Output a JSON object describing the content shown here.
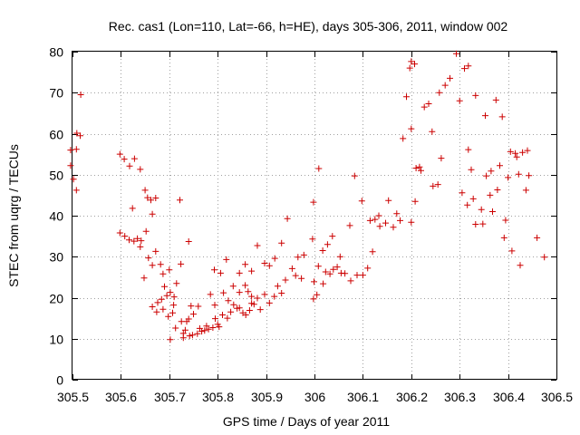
{
  "chart_data": {
    "type": "scatter",
    "title": "Rec. cas1 (Lon=110, Lat=-66, h=HE), days 305-306, 2011, window 002",
    "xlabel": "GPS time / Days of year 2011",
    "ylabel": "STEC from uqrg / TECUs",
    "xlim": [
      305.5,
      306.5
    ],
    "ylim": [
      0,
      80
    ],
    "xticks": [
      "305.5",
      "305.6",
      "305.7",
      "305.8",
      "305.9",
      "306",
      "306.1",
      "306.2",
      "306.3",
      "306.4",
      "306.5"
    ],
    "yticks": [
      "0",
      "10",
      "20",
      "30",
      "40",
      "50",
      "60",
      "70",
      "80"
    ],
    "grid": true,
    "marker": "+",
    "color": "#cc0000",
    "series": [
      {
        "name": "STEC",
        "points": [
          [
            305.496,
            56.0
          ],
          [
            305.496,
            52.2
          ],
          [
            305.502,
            48.9
          ],
          [
            305.508,
            56.2
          ],
          [
            305.509,
            60.1
          ],
          [
            305.508,
            46.2
          ],
          [
            305.517,
            69.5
          ],
          [
            305.516,
            59.5
          ],
          [
            305.598,
            55.0
          ],
          [
            305.607,
            53.8
          ],
          [
            305.618,
            52.1
          ],
          [
            305.628,
            53.9
          ],
          [
            305.64,
            51.3
          ],
          [
            305.65,
            46.2
          ],
          [
            305.655,
            44.4
          ],
          [
            305.662,
            43.8
          ],
          [
            305.672,
            44.3
          ],
          [
            305.624,
            41.8
          ],
          [
            305.665,
            40.4
          ],
          [
            305.598,
            35.8
          ],
          [
            305.608,
            35.0
          ],
          [
            305.617,
            34.1
          ],
          [
            305.627,
            33.8
          ],
          [
            305.634,
            34.4
          ],
          [
            305.642,
            33.9
          ],
          [
            305.64,
            32.4
          ],
          [
            305.652,
            36.2
          ],
          [
            305.648,
            24.8
          ],
          [
            305.672,
            31.3
          ],
          [
            305.682,
            28.1
          ],
          [
            305.665,
            27.9
          ],
          [
            305.657,
            29.7
          ],
          [
            305.687,
            25.8
          ],
          [
            305.7,
            26.8
          ],
          [
            305.665,
            17.8
          ],
          [
            305.674,
            16.5
          ],
          [
            305.676,
            18.8
          ],
          [
            305.684,
            19.6
          ],
          [
            305.687,
            17.2
          ],
          [
            305.695,
            20.5
          ],
          [
            305.702,
            21.3
          ],
          [
            305.709,
            18.2
          ],
          [
            305.707,
            16.3
          ],
          [
            305.698,
            15.4
          ],
          [
            305.702,
            9.8
          ],
          [
            305.69,
            22.7
          ],
          [
            305.713,
            12.6
          ],
          [
            305.729,
            11.3
          ],
          [
            305.729,
            10.2
          ],
          [
            305.733,
            12.1
          ],
          [
            305.736,
            14.2
          ],
          [
            305.742,
            10.7
          ],
          [
            305.748,
            10.9
          ],
          [
            305.758,
            11.2
          ],
          [
            305.763,
            12.5
          ],
          [
            305.767,
            11.8
          ],
          [
            305.773,
            12.0
          ],
          [
            305.781,
            12.3
          ],
          [
            305.777,
            13.1
          ],
          [
            305.79,
            12.7
          ],
          [
            305.795,
            14.9
          ],
          [
            305.8,
            13.5
          ],
          [
            305.725,
            14.2
          ],
          [
            305.74,
            14.8
          ],
          [
            305.745,
            18.0
          ],
          [
            305.76,
            17.9
          ],
          [
            305.75,
            16.0
          ],
          [
            305.724,
            28.2
          ],
          [
            305.74,
            33.7
          ],
          [
            305.722,
            43.8
          ],
          [
            305.715,
            23.5
          ],
          [
            305.71,
            20.2
          ],
          [
            305.785,
            20.8
          ],
          [
            305.794,
            18.2
          ],
          [
            305.803,
            12.9
          ],
          [
            305.81,
            15.8
          ],
          [
            305.812,
            21.2
          ],
          [
            305.82,
            15.0
          ],
          [
            305.822,
            19.3
          ],
          [
            305.827,
            16.5
          ],
          [
            305.833,
            18.3
          ],
          [
            305.84,
            17.4
          ],
          [
            305.793,
            26.8
          ],
          [
            305.806,
            26.0
          ],
          [
            305.818,
            29.3
          ],
          [
            305.832,
            22.8
          ],
          [
            305.845,
            26.0
          ],
          [
            305.857,
            28.1
          ],
          [
            305.87,
            26.5
          ],
          [
            305.882,
            32.7
          ],
          [
            305.897,
            28.4
          ],
          [
            305.907,
            27.8
          ],
          [
            305.845,
            21.3
          ],
          [
            305.857,
            23.0
          ],
          [
            305.863,
            21.5
          ],
          [
            305.87,
            20.3
          ],
          [
            305.875,
            18.4
          ],
          [
            305.882,
            19.9
          ],
          [
            305.888,
            17.1
          ],
          [
            305.897,
            20.8
          ],
          [
            305.907,
            18.7
          ],
          [
            305.917,
            20.3
          ],
          [
            305.924,
            22.8
          ],
          [
            305.932,
            21.1
          ],
          [
            305.94,
            24.3
          ],
          [
            305.845,
            17.5
          ],
          [
            305.852,
            16.3
          ],
          [
            305.858,
            15.8
          ],
          [
            305.866,
            16.9
          ],
          [
            305.87,
            18.6
          ],
          [
            305.918,
            29.6
          ],
          [
            305.932,
            33.3
          ],
          [
            305.944,
            39.3
          ],
          [
            305.954,
            27.1
          ],
          [
            305.961,
            25.4
          ],
          [
            305.973,
            24.7
          ],
          [
            305.966,
            29.9
          ],
          [
            305.978,
            30.4
          ],
          [
            305.998,
            19.7
          ],
          [
            306.005,
            20.7
          ],
          [
            305.999,
            23.9
          ],
          [
            306.008,
            27.7
          ],
          [
            306.018,
            23.4
          ],
          [
            306.023,
            26.3
          ],
          [
            306.032,
            25.8
          ],
          [
            306.039,
            26.9
          ],
          [
            306.047,
            27.5
          ],
          [
            306.055,
            26.0
          ],
          [
            306.063,
            25.9
          ],
          [
            306.075,
            24.1
          ],
          [
            305.996,
            34.3
          ],
          [
            305.998,
            43.3
          ],
          [
            306.009,
            51.5
          ],
          [
            306.017,
            31.5
          ],
          [
            306.027,
            33.0
          ],
          [
            306.037,
            35.0
          ],
          [
            306.053,
            30.0
          ],
          [
            306.073,
            37.6
          ],
          [
            306.083,
            49.7
          ],
          [
            306.088,
            25.5
          ],
          [
            306.1,
            25.5
          ],
          [
            306.098,
            43.6
          ],
          [
            306.11,
            27.2
          ],
          [
            306.12,
            31.2
          ],
          [
            306.115,
            38.8
          ],
          [
            306.125,
            39.1
          ],
          [
            306.135,
            37.4
          ],
          [
            306.133,
            40.0
          ],
          [
            306.147,
            38.2
          ],
          [
            306.153,
            43.7
          ],
          [
            306.163,
            37.2
          ],
          [
            306.17,
            40.5
          ],
          [
            306.177,
            38.8
          ],
          [
            306.183,
            58.8
          ],
          [
            306.2,
            38.4
          ],
          [
            306.208,
            43.5
          ],
          [
            306.21,
            51.6
          ],
          [
            306.19,
            69.0
          ],
          [
            306.197,
            76.0
          ],
          [
            306.2,
            77.6
          ],
          [
            306.207,
            77.0
          ],
          [
            306.2,
            61.2
          ],
          [
            306.217,
            51.9
          ],
          [
            306.22,
            51.0
          ],
          [
            306.227,
            66.5
          ],
          [
            306.236,
            67.3
          ],
          [
            306.243,
            60.5
          ],
          [
            306.245,
            47.2
          ],
          [
            306.255,
            47.6
          ],
          [
            306.258,
            70.0
          ],
          [
            306.262,
            54.0
          ],
          [
            306.27,
            71.8
          ],
          [
            306.28,
            73.5
          ],
          [
            306.293,
            79.5
          ],
          [
            306.3,
            68.0
          ],
          [
            306.305,
            45.6
          ],
          [
            306.31,
            75.9
          ],
          [
            306.318,
            76.5
          ],
          [
            306.316,
            42.6
          ],
          [
            306.318,
            56.1
          ],
          [
            306.324,
            51.2
          ],
          [
            306.328,
            44.1
          ],
          [
            306.333,
            37.9
          ],
          [
            306.333,
            69.3
          ],
          [
            306.345,
            41.5
          ],
          [
            306.348,
            38.0
          ],
          [
            306.353,
            64.4
          ],
          [
            306.355,
            49.7
          ],
          [
            306.363,
            45.0
          ],
          [
            306.365,
            50.9
          ],
          [
            306.368,
            41.0
          ],
          [
            306.375,
            68.2
          ],
          [
            306.378,
            46.3
          ],
          [
            306.383,
            52.2
          ],
          [
            306.388,
            64.1
          ],
          [
            306.392,
            34.6
          ],
          [
            306.395,
            38.9
          ],
          [
            306.4,
            49.3
          ],
          [
            306.405,
            55.6
          ],
          [
            306.408,
            31.4
          ],
          [
            306.415,
            55.2
          ],
          [
            306.418,
            54.3
          ],
          [
            306.422,
            50.1
          ],
          [
            306.425,
            27.9
          ],
          [
            306.43,
            55.4
          ],
          [
            306.437,
            46.2
          ],
          [
            306.44,
            55.9
          ],
          [
            306.443,
            49.8
          ],
          [
            306.46,
            34.6
          ],
          [
            306.475,
            29.9
          ]
        ]
      }
    ]
  }
}
